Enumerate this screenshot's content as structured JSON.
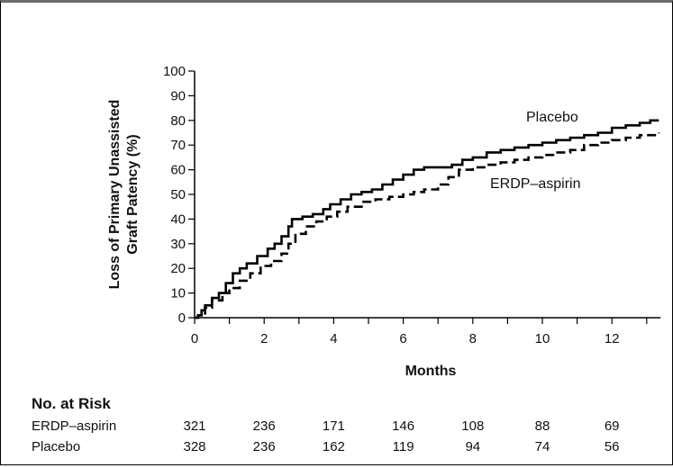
{
  "chart_data": {
    "type": "line",
    "title": "",
    "ylabel_lines": [
      "Loss of Primary Unassisted",
      "Graft Patency (%)"
    ],
    "xlabel": "Months",
    "xlim": [
      0,
      13.4
    ],
    "ylim": [
      0,
      100
    ],
    "x_ticks": [
      0,
      2,
      4,
      6,
      8,
      10,
      12
    ],
    "y_ticks": [
      0,
      10,
      20,
      30,
      40,
      50,
      60,
      70,
      80,
      90,
      100
    ],
    "grid": false,
    "series": [
      {
        "name": "Placebo",
        "style": "solid",
        "color": "#000000",
        "points": [
          [
            0,
            0
          ],
          [
            0.1,
            1
          ],
          [
            0.2,
            3
          ],
          [
            0.3,
            5
          ],
          [
            0.5,
            8
          ],
          [
            0.7,
            10
          ],
          [
            0.9,
            14
          ],
          [
            1.1,
            18
          ],
          [
            1.3,
            20
          ],
          [
            1.5,
            22
          ],
          [
            1.8,
            25
          ],
          [
            2.1,
            28
          ],
          [
            2.3,
            30
          ],
          [
            2.5,
            33
          ],
          [
            2.7,
            37
          ],
          [
            2.8,
            40
          ],
          [
            3.1,
            41
          ],
          [
            3.4,
            42
          ],
          [
            3.7,
            44
          ],
          [
            3.9,
            46
          ],
          [
            4.2,
            48
          ],
          [
            4.5,
            50
          ],
          [
            4.8,
            51
          ],
          [
            5.1,
            52
          ],
          [
            5.4,
            54
          ],
          [
            5.7,
            56
          ],
          [
            6.0,
            58
          ],
          [
            6.3,
            60
          ],
          [
            6.6,
            61
          ],
          [
            7.0,
            61
          ],
          [
            7.4,
            62
          ],
          [
            7.7,
            64
          ],
          [
            8.0,
            65
          ],
          [
            8.4,
            67
          ],
          [
            8.8,
            68
          ],
          [
            9.2,
            69
          ],
          [
            9.6,
            70
          ],
          [
            10.0,
            71
          ],
          [
            10.4,
            72
          ],
          [
            10.8,
            73
          ],
          [
            11.2,
            74
          ],
          [
            11.6,
            75
          ],
          [
            12.0,
            77
          ],
          [
            12.4,
            78
          ],
          [
            12.8,
            79
          ],
          [
            13.1,
            80
          ],
          [
            13.35,
            80
          ]
        ]
      },
      {
        "name": "ERDP–aspirin",
        "style": "dashed",
        "color": "#000000",
        "points": [
          [
            0,
            0
          ],
          [
            0.1,
            1
          ],
          [
            0.3,
            4
          ],
          [
            0.5,
            7
          ],
          [
            0.8,
            10
          ],
          [
            1.0,
            12
          ],
          [
            1.3,
            15
          ],
          [
            1.6,
            18
          ],
          [
            1.9,
            21
          ],
          [
            2.2,
            23
          ],
          [
            2.5,
            26
          ],
          [
            2.7,
            30
          ],
          [
            2.9,
            34
          ],
          [
            3.2,
            37
          ],
          [
            3.5,
            39
          ],
          [
            3.8,
            41
          ],
          [
            4.1,
            43
          ],
          [
            4.4,
            45
          ],
          [
            4.8,
            47
          ],
          [
            5.2,
            48
          ],
          [
            5.6,
            49
          ],
          [
            6.0,
            50
          ],
          [
            6.3,
            51
          ],
          [
            6.6,
            52
          ],
          [
            7.0,
            54
          ],
          [
            7.3,
            57
          ],
          [
            7.6,
            60
          ],
          [
            8.0,
            61
          ],
          [
            8.4,
            62
          ],
          [
            8.8,
            63
          ],
          [
            9.2,
            64
          ],
          [
            9.6,
            65
          ],
          [
            10.0,
            66
          ],
          [
            10.4,
            67
          ],
          [
            10.8,
            68
          ],
          [
            11.2,
            70
          ],
          [
            11.6,
            71
          ],
          [
            12.0,
            72
          ],
          [
            12.4,
            73
          ],
          [
            12.8,
            74
          ],
          [
            13.35,
            75
          ]
        ]
      }
    ],
    "series_labels": [
      {
        "text": "Placebo",
        "series": "Placebo"
      },
      {
        "text": "ERDP–aspirin",
        "series": "ERDP–aspirin"
      }
    ],
    "risk_table": {
      "title": "No. at Risk",
      "months": [
        0,
        2,
        4,
        6,
        8,
        10,
        12
      ],
      "rows": [
        {
          "label": "ERDP–aspirin",
          "values": [
            "321",
            "236",
            "171",
            "146",
            "108",
            "88",
            "69"
          ]
        },
        {
          "label": "Placebo",
          "values": [
            "328",
            "236",
            "162",
            "119",
            "94",
            "74",
            "56"
          ]
        }
      ]
    }
  }
}
